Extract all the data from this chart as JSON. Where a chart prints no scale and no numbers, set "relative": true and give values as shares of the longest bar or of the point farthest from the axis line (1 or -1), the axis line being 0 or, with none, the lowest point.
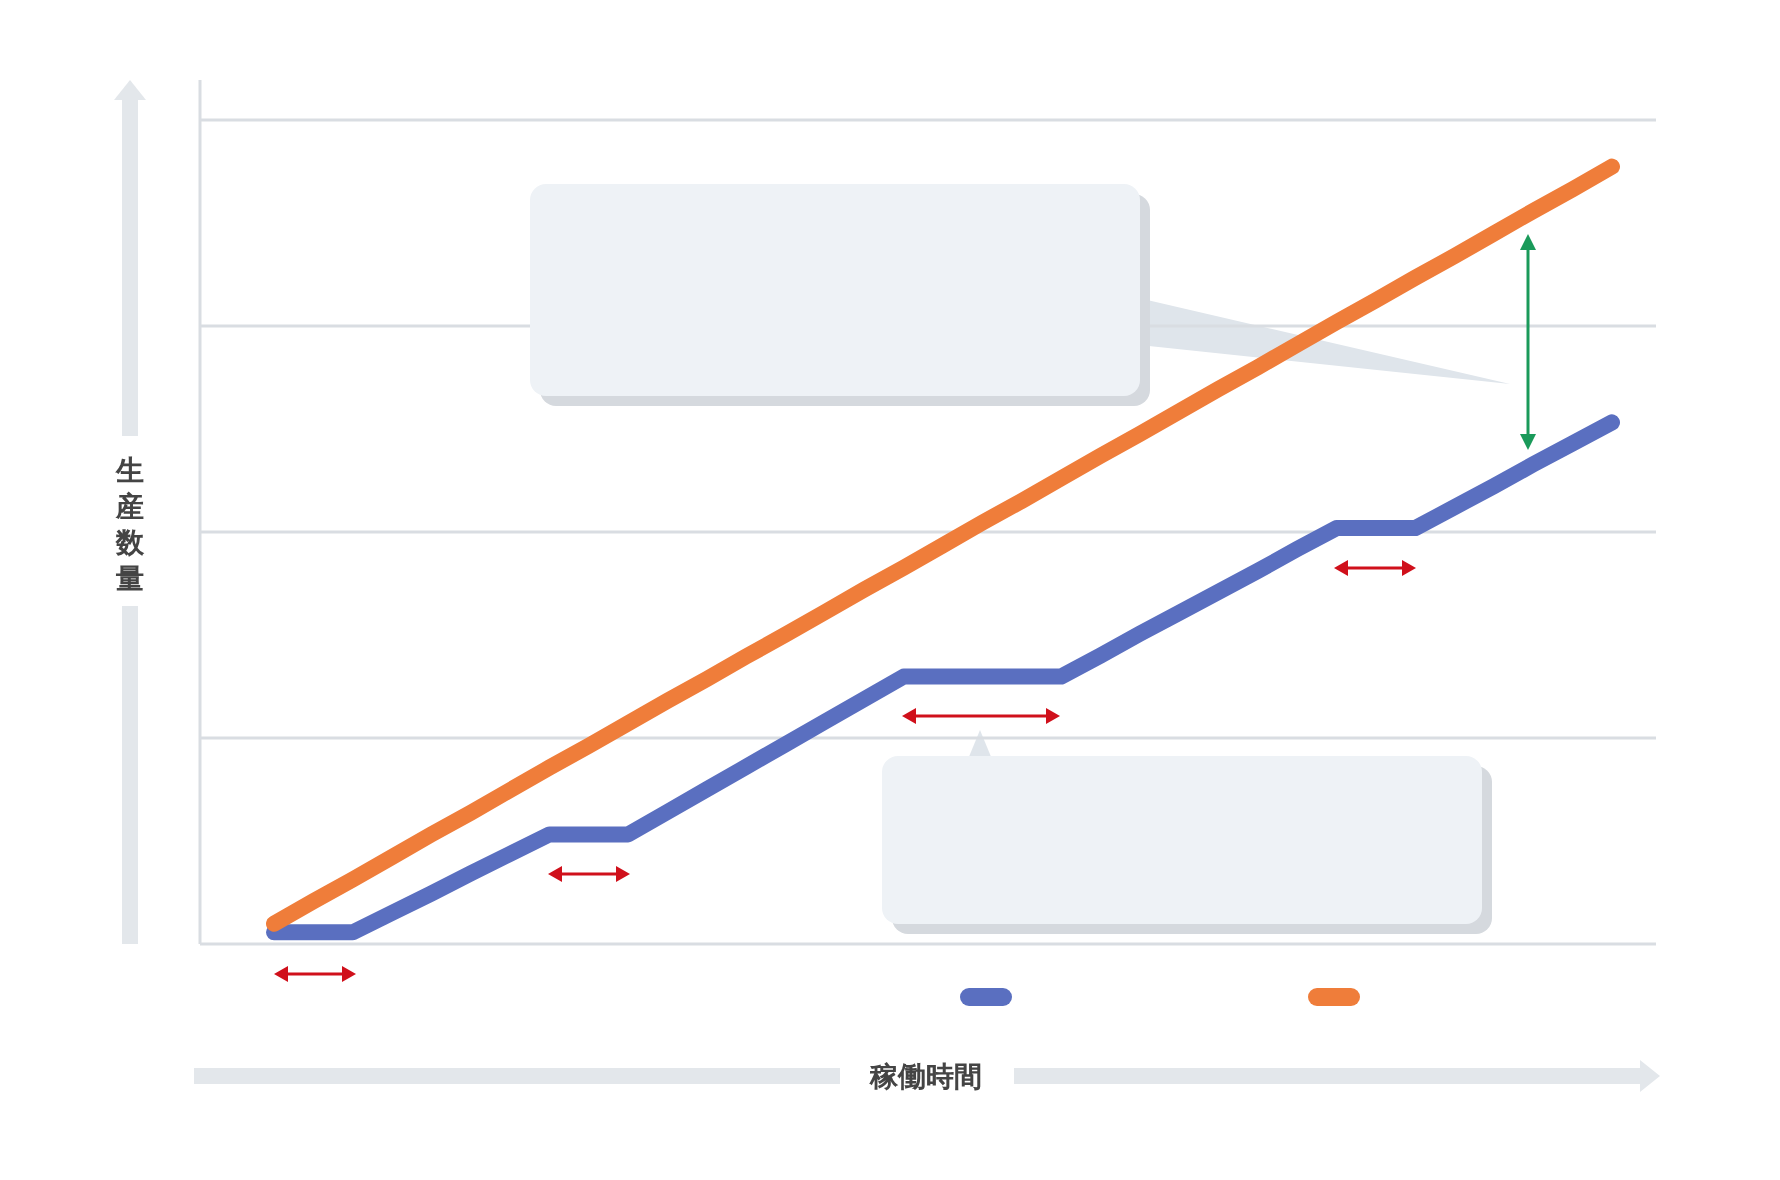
{
  "chart_data": {
    "type": "line",
    "relative": true,
    "xlabel": "稼働時間",
    "ylabel": "生産数量",
    "grid": "y",
    "line_style": "solid",
    "marker": "none",
    "categories": [
      null,
      null,
      null,
      null,
      null,
      null,
      null,
      null,
      null,
      null,
      null,
      null,
      null,
      null,
      null,
      null,
      null,
      null,
      null,
      null,
      null,
      null,
      null,
      null,
      null,
      null,
      null,
      null,
      null,
      null,
      null,
      null,
      null,
      null,
      null
    ],
    "series": [
      {
        "color": "#5a6fc0",
        "values": [
          0.015,
          0.015,
          0.015,
          0.04,
          0.065,
          0.091,
          0.116,
          0.141,
          0.141,
          0.141,
          0.17,
          0.199,
          0.228,
          0.257,
          0.286,
          0.315,
          0.344,
          0.344,
          0.344,
          0.344,
          0.344,
          0.371,
          0.399,
          0.426,
          0.453,
          0.48,
          0.508,
          0.535,
          0.535,
          0.535,
          0.562,
          0.589,
          0.617,
          0.644,
          0.671
        ]
      },
      {
        "color": "#ef7d3a",
        "values": [
          0.026,
          0.055,
          0.083,
          0.112,
          0.141,
          0.169,
          0.198,
          0.227,
          0.255,
          0.284,
          0.313,
          0.341,
          0.37,
          0.398,
          0.427,
          0.456,
          0.484,
          0.513,
          0.542,
          0.57,
          0.599,
          0.628,
          0.656,
          0.685,
          0.714,
          0.742,
          0.771,
          0.8,
          0.828,
          0.857,
          0.885,
          0.914,
          0.943,
          0.971,
          1
        ]
      }
    ]
  }
}
